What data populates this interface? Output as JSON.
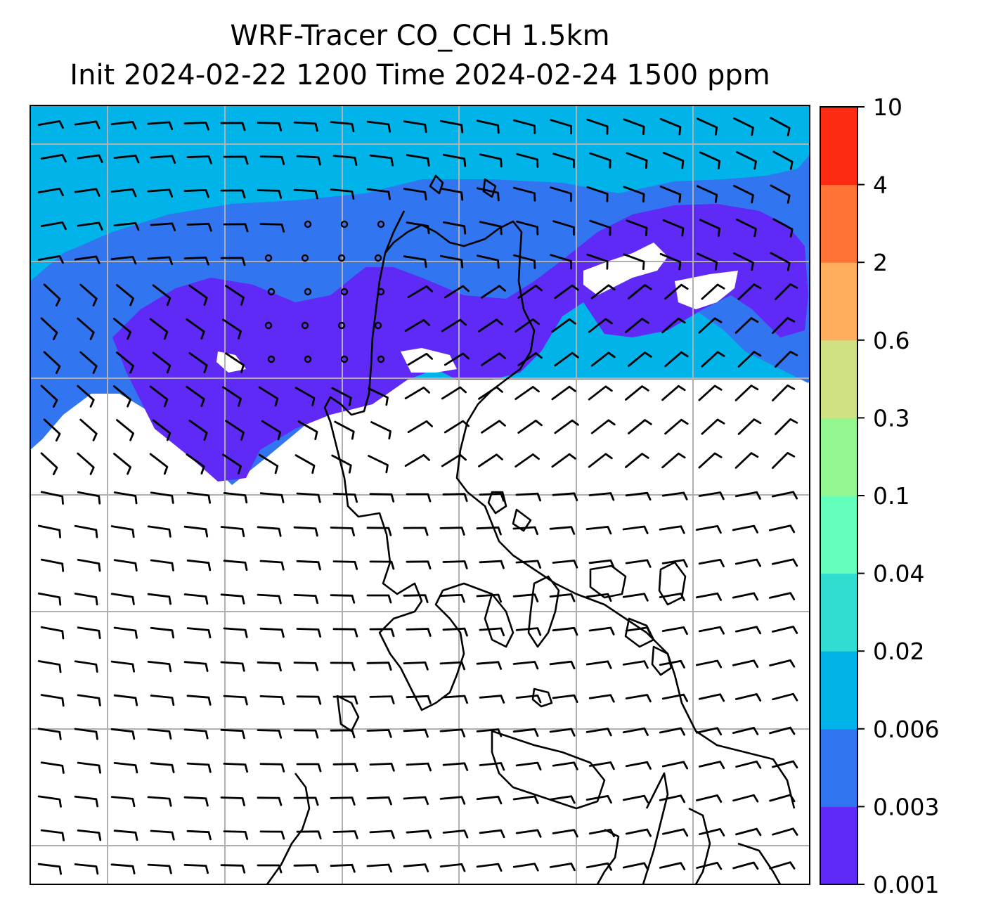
{
  "title": {
    "line1": "WRF-Tracer CO_CCH 1.5km",
    "line2": "Init 2024-02-22 1200 Time 2024-02-24 1500 ppm"
  },
  "colorbar": {
    "levels": [
      "0.001",
      "0.003",
      "0.006",
      "0.02",
      "0.04",
      "0.1",
      "0.3",
      "0.6",
      "2",
      "4",
      "10"
    ],
    "colors": [
      "#5f2af5",
      "#3176f0",
      "#00b4ea",
      "#30ddd0",
      "#64ffbc",
      "#93f690",
      "#cfe182",
      "#ffae60",
      "#ff7337",
      "#ff2a12"
    ]
  },
  "map": {
    "fill_colors": {
      "band_0006": "#00b4ea",
      "band_0003": "#3176f0",
      "band_0001": "#5f2af5",
      "gridline": "#b0b0b0",
      "coastline": "#000000",
      "barb": "#000000"
    }
  }
}
